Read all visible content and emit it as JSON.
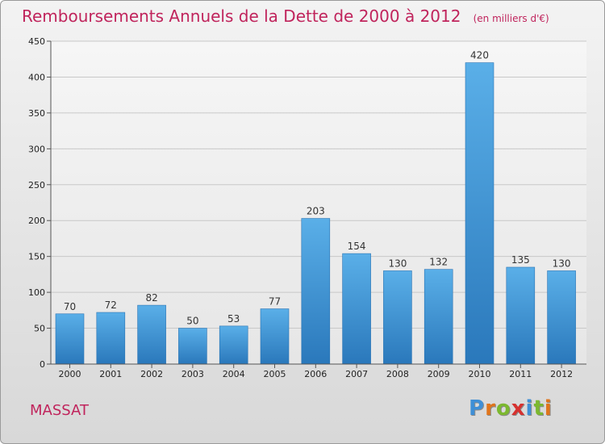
{
  "header": {
    "title": "Remboursements Annuels de la Dette de 2000 à 2012",
    "unit": "(en milliers d'€)"
  },
  "place": "MASSAT",
  "logo": {
    "letters": [
      "P",
      "r",
      "o",
      "x",
      "i",
      "t",
      "i"
    ],
    "colors": [
      "#3f8fd6",
      "#e0751c",
      "#7cb82f",
      "#d6312f",
      "#3f8fd6",
      "#7cb82f",
      "#e0751c"
    ]
  },
  "chart_data": {
    "type": "bar",
    "title": "Remboursements Annuels de la Dette de 2000 à 2012",
    "categories": [
      "2000",
      "2001",
      "2002",
      "2003",
      "2004",
      "2005",
      "2006",
      "2007",
      "2008",
      "2009",
      "2010",
      "2011",
      "2012"
    ],
    "values": [
      70,
      72,
      82,
      50,
      53,
      77,
      203,
      154,
      130,
      132,
      420,
      135,
      130
    ],
    "data_labels": [
      "70",
      "72",
      "82",
      "50",
      "53",
      "77",
      "203",
      "154",
      "130",
      "132",
      "420",
      "135",
      "130"
    ],
    "ylim": [
      0,
      450
    ],
    "yticks": [
      0,
      50,
      100,
      150,
      200,
      250,
      300,
      350,
      400,
      450
    ],
    "ytick_labels": [
      "0",
      "50",
      "100",
      "150",
      "200",
      "250",
      "300",
      "350",
      "400",
      "450"
    ],
    "grid": true,
    "bar_color": "#4ea6e4",
    "bar_color_dark": "#2c7fc2"
  }
}
